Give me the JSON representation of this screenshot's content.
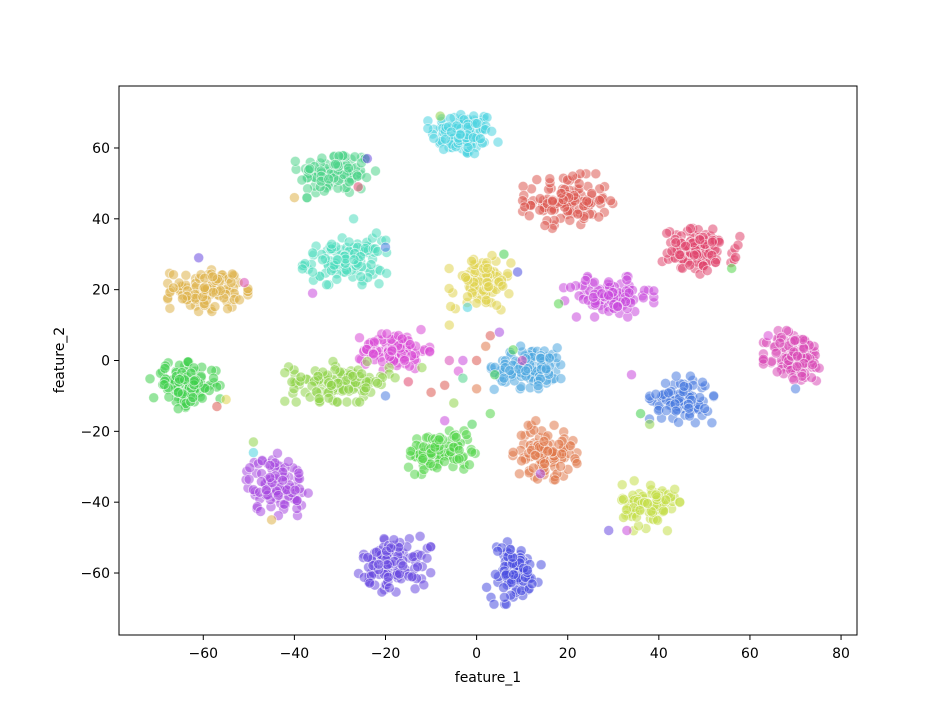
{
  "chart_data": {
    "type": "scatter",
    "title": "",
    "xlabel": "feature_1",
    "ylabel": "feature_2",
    "xlim": [
      -78.5,
      83.5
    ],
    "ylim": [
      -77.5,
      77.5
    ],
    "xticks": [
      -60,
      -40,
      -20,
      0,
      20,
      40,
      60,
      80
    ],
    "yticks": [
      -60,
      -40,
      -20,
      0,
      20,
      40,
      60
    ],
    "grid": false,
    "legend": "none",
    "point_alpha": 0.55,
    "clusters": [
      {
        "color": "#4dd3e0",
        "center": [
          -3,
          64
        ],
        "spread": [
          3.5,
          3.2
        ],
        "n": 110
      },
      {
        "color": "#4ed48a",
        "center": [
          -31,
          53
        ],
        "spread": [
          4.0,
          3.2
        ],
        "n": 110
      },
      {
        "color": "#dd5a52",
        "center": [
          20,
          45
        ],
        "spread": [
          4.5,
          3.5
        ],
        "n": 120
      },
      {
        "color": "#4fdcbd",
        "center": [
          -29,
          28
        ],
        "spread": [
          4.2,
          3.0
        ],
        "n": 110
      },
      {
        "color": "#e0466e",
        "center": [
          49,
          31
        ],
        "spread": [
          4.0,
          3.0
        ],
        "n": 110
      },
      {
        "color": "#dfb24a",
        "center": [
          -59,
          20
        ],
        "spread": [
          4.0,
          2.8
        ],
        "n": 110
      },
      {
        "color": "#e0d350",
        "center": [
          1,
          22
        ],
        "spread": [
          3.2,
          3.5
        ],
        "n": 100
      },
      {
        "color": "#c848dd",
        "center": [
          29,
          18
        ],
        "spread": [
          4.5,
          2.6
        ],
        "n": 100
      },
      {
        "color": "#d84ad6",
        "center": [
          -18,
          3
        ],
        "spread": [
          3.5,
          2.6
        ],
        "n": 100
      },
      {
        "color": "#d94ab6",
        "center": [
          70,
          1
        ],
        "spread": [
          3.2,
          3.6
        ],
        "n": 110
      },
      {
        "color": "#4ea8e0",
        "center": [
          12,
          -2
        ],
        "spread": [
          4.0,
          2.8
        ],
        "n": 110
      },
      {
        "color": "#8fd44a",
        "center": [
          -30,
          -6
        ],
        "spread": [
          5.5,
          2.6
        ],
        "n": 120
      },
      {
        "color": "#3fcf4c",
        "center": [
          -64,
          -7
        ],
        "spread": [
          3.5,
          3.0
        ],
        "n": 110
      },
      {
        "color": "#4a7be0",
        "center": [
          45,
          -11
        ],
        "spread": [
          3.2,
          3.0
        ],
        "n": 100
      },
      {
        "color": "#53d64a",
        "center": [
          -8,
          -26
        ],
        "spread": [
          3.5,
          2.8
        ],
        "n": 110
      },
      {
        "color": "#e0784a",
        "center": [
          15,
          -26
        ],
        "spread": [
          3.2,
          3.5
        ],
        "n": 100
      },
      {
        "color": "#a84ae0",
        "center": [
          -44,
          -35
        ],
        "spread": [
          3.2,
          4.0
        ],
        "n": 110
      },
      {
        "color": "#c4df4a",
        "center": [
          38,
          -41
        ],
        "spread": [
          3.0,
          3.2
        ],
        "n": 90
      },
      {
        "color": "#6a4ae0",
        "center": [
          -18,
          -57
        ],
        "spread": [
          3.6,
          3.8
        ],
        "n": 110
      },
      {
        "color": "#4a4ee0",
        "center": [
          8,
          -60
        ],
        "spread": [
          2.8,
          4.0
        ],
        "n": 100
      }
    ],
    "scattered_points": [
      {
        "x": -7,
        "y": -7,
        "color": "#dd5a52"
      },
      {
        "x": -4,
        "y": -3,
        "color": "#d84ad6"
      },
      {
        "x": -3,
        "y": -5,
        "color": "#4ed48a"
      },
      {
        "x": 0,
        "y": -8,
        "color": "#e0784a"
      },
      {
        "x": 2,
        "y": 4,
        "color": "#e0784a"
      },
      {
        "x": 3,
        "y": 7,
        "color": "#dd5a52"
      },
      {
        "x": 5,
        "y": 8,
        "color": "#a84ae0"
      },
      {
        "x": 4,
        "y": -4,
        "color": "#3fcf4c"
      },
      {
        "x": 6,
        "y": 30,
        "color": "#3fcf4c"
      },
      {
        "x": 9,
        "y": 25,
        "color": "#4a4ee0"
      },
      {
        "x": -2,
        "y": 15,
        "color": "#4dd3e0"
      },
      {
        "x": -5,
        "y": -12,
        "color": "#8fd44a"
      },
      {
        "x": -7,
        "y": -17,
        "color": "#c848dd"
      },
      {
        "x": -1,
        "y": -18,
        "color": "#3fcf4c"
      },
      {
        "x": 3,
        "y": -15,
        "color": "#53d64a"
      },
      {
        "x": 6,
        "y": -5,
        "color": "#4ea8e0"
      },
      {
        "x": -3,
        "y": 0,
        "color": "#c848dd"
      },
      {
        "x": -6,
        "y": 0,
        "color": "#d94ab6"
      },
      {
        "x": -10,
        "y": -9,
        "color": "#dd5a52"
      },
      {
        "x": 0,
        "y": 0,
        "color": "#dd5a52"
      },
      {
        "x": 8,
        "y": 3,
        "color": "#53d64a"
      },
      {
        "x": 10,
        "y": 0,
        "color": "#d94ab6"
      },
      {
        "x": -49,
        "y": -23,
        "color": "#8fd44a"
      },
      {
        "x": -49,
        "y": -26,
        "color": "#4dd3e0"
      },
      {
        "x": -45,
        "y": -45,
        "color": "#dfb24a"
      },
      {
        "x": -61,
        "y": 29,
        "color": "#6a4ae0"
      },
      {
        "x": -51,
        "y": 22,
        "color": "#d94ab6"
      },
      {
        "x": -36,
        "y": 19,
        "color": "#c848dd"
      },
      {
        "x": -36,
        "y": 25,
        "color": "#4fdcbd"
      },
      {
        "x": -20,
        "y": 32,
        "color": "#4a7be0"
      },
      {
        "x": -22,
        "y": 36,
        "color": "#4fdcbd"
      },
      {
        "x": -27,
        "y": 40,
        "color": "#4fdcbd"
      },
      {
        "x": -26,
        "y": 49,
        "color": "#e0466e"
      },
      {
        "x": -40,
        "y": 46,
        "color": "#dfb24a"
      },
      {
        "x": -24,
        "y": 57,
        "color": "#6a4ae0"
      },
      {
        "x": -8,
        "y": 69,
        "color": "#8fd44a"
      },
      {
        "x": 34,
        "y": -4,
        "color": "#c848dd"
      },
      {
        "x": 36,
        "y": -15,
        "color": "#3fcf4c"
      },
      {
        "x": 38,
        "y": -18,
        "color": "#8fd44a"
      },
      {
        "x": 29,
        "y": -48,
        "color": "#6a4ae0"
      },
      {
        "x": 33,
        "y": -48,
        "color": "#c848dd"
      },
      {
        "x": 56,
        "y": 26,
        "color": "#53d64a"
      },
      {
        "x": 70,
        "y": -8,
        "color": "#4a7be0"
      },
      {
        "x": 64,
        "y": 7,
        "color": "#d84ad6"
      },
      {
        "x": 18,
        "y": 16,
        "color": "#53d64a"
      },
      {
        "x": 14,
        "y": -32,
        "color": "#a84ae0"
      },
      {
        "x": 13,
        "y": -17,
        "color": "#e0784a"
      },
      {
        "x": -57,
        "y": -13,
        "color": "#dd5a52"
      },
      {
        "x": -55,
        "y": -11,
        "color": "#e0d350"
      },
      {
        "x": -6,
        "y": 10,
        "color": "#e0d350"
      },
      {
        "x": -20,
        "y": -10,
        "color": "#4a7be0"
      },
      {
        "x": -15,
        "y": -6,
        "color": "#e0466e"
      },
      {
        "x": -12,
        "y": -2,
        "color": "#8fd44a"
      }
    ]
  }
}
